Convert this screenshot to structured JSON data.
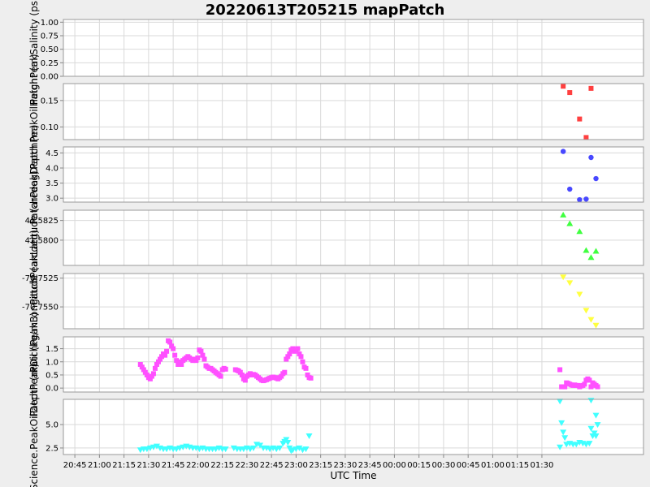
{
  "chart_data": {
    "title": "20220613T205215 mapPatch",
    "type": "scatter",
    "xlabel": "UTC Time",
    "x_ticks": [
      "20:45",
      "21:00",
      "21:15",
      "21:30",
      "21:45",
      "22:00",
      "22:15",
      "22:30",
      "22:45",
      "23:00",
      "23:15",
      "23:30",
      "23:45",
      "00:00",
      "00:15",
      "00:30",
      "00:45",
      "01:00",
      "01:15",
      "01:30"
    ],
    "x_range_minutes": [
      1238,
      1592
    ],
    "grid": true,
    "colors": {
      "background": "#eeeeee",
      "plot_bg": "#ffffff",
      "grid": "#d9d9d9",
      "salinity": "#ff0000",
      "oil_height": "#ff4040",
      "depth": "#4848ff",
      "latitude": "#40ff40",
      "longitude": "#ffff40",
      "peak_oil": "#ff50ff",
      "peak_oil_depth": "#40ffff"
    },
    "panels": [
      {
        "id": "salinity",
        "ylabel": "PatchPeakSalinity (psu)",
        "ylim": [
          0,
          1.05
        ],
        "yticks": [
          0.0,
          0.25,
          0.5,
          0.75,
          1.0
        ],
        "ytick_labels": [
          "0.00",
          "0.25",
          "0.50",
          "0.75",
          "1.00"
        ],
        "marker": "square",
        "points": []
      },
      {
        "id": "oil_height",
        "ylabel": "PatchPeakOilHeight (m)",
        "ylim": [
          0.076,
          0.182
        ],
        "yticks": [
          0.1,
          0.15
        ],
        "ytick_labels": [
          "0.10",
          "0.15"
        ],
        "marker": "square",
        "points": [
          [
            1543,
            0.177
          ],
          [
            1547,
            0.165
          ],
          [
            1553,
            0.115
          ],
          [
            1557,
            0.08
          ],
          [
            1560,
            0.173
          ]
        ]
      },
      {
        "id": "depth",
        "ylabel": "PatchPeakDepth (m)",
        "ylim": [
          2.87,
          4.7
        ],
        "yticks": [
          3.0,
          3.5,
          4.0,
          4.5
        ],
        "ytick_labels": [
          "3.0",
          "3.5",
          "4.0",
          "4.5"
        ],
        "marker": "circle",
        "points": [
          [
            1543,
            4.55
          ],
          [
            1547,
            3.3
          ],
          [
            1553,
            2.95
          ],
          [
            1557,
            2.97
          ],
          [
            1560,
            4.35
          ],
          [
            1563,
            3.65
          ]
        ]
      },
      {
        "id": "latitude",
        "ylabel": "PatchPeakLatitude (arcdeg)",
        "ylim": [
          41.5768,
          41.5838
        ],
        "yticks": [
          41.58,
          41.5825
        ],
        "ytick_labels": [
          "41.5800",
          "41.5825"
        ],
        "marker": "triangle-up",
        "points": [
          [
            1543,
            41.5832
          ],
          [
            1547,
            41.5821
          ],
          [
            1553,
            41.5811
          ],
          [
            1557,
            41.5787
          ],
          [
            1560,
            41.5778
          ],
          [
            1563,
            41.5786
          ]
        ]
      },
      {
        "id": "longitude",
        "ylabel": "PatchPeakLongitude (arcdeg)",
        "ylim": [
          -70.7569,
          -70.7521
        ],
        "yticks": [
          -70.7525,
          -70.755
        ],
        "ytick_labels": [
          "-70.7525",
          "-70.7550"
        ],
        "marker": "triangle-down",
        "points": [
          [
            1543,
            -70.7524
          ],
          [
            1547,
            -70.7529
          ],
          [
            1553,
            -70.7539
          ],
          [
            1557,
            -70.7553
          ],
          [
            1560,
            -70.7561
          ],
          [
            1563,
            -70.7566
          ]
        ]
      },
      {
        "id": "peak_oil",
        "ylabel": "PatchPeakOil (kg/m3)",
        "ylim": [
          -0.15,
          1.95
        ],
        "yticks": [
          0.0,
          0.5,
          1.0,
          1.5
        ],
        "ytick_labels": [
          "0.0",
          "0.5",
          "1.0",
          "1.5"
        ],
        "marker": "square",
        "points": [
          [
            1285,
            0.9
          ],
          [
            1286,
            0.8
          ],
          [
            1287,
            0.7
          ],
          [
            1288,
            0.6
          ],
          [
            1289,
            0.5
          ],
          [
            1290,
            0.4
          ],
          [
            1291,
            0.35
          ],
          [
            1292,
            0.45
          ],
          [
            1293,
            0.55
          ],
          [
            1294,
            0.75
          ],
          [
            1295,
            0.9
          ],
          [
            1296,
            1.0
          ],
          [
            1297,
            1.1
          ],
          [
            1298,
            1.2
          ],
          [
            1299,
            1.3
          ],
          [
            1300,
            1.25
          ],
          [
            1301,
            1.4
          ],
          [
            1302,
            1.8
          ],
          [
            1303,
            1.75
          ],
          [
            1304,
            1.6
          ],
          [
            1305,
            1.5
          ],
          [
            1306,
            1.25
          ],
          [
            1307,
            1.05
          ],
          [
            1308,
            0.9
          ],
          [
            1309,
            1.0
          ],
          [
            1310,
            0.9
          ],
          [
            1311,
            1.05
          ],
          [
            1312,
            1.1
          ],
          [
            1313,
            1.15
          ],
          [
            1314,
            1.2
          ],
          [
            1315,
            1.15
          ],
          [
            1316,
            1.1
          ],
          [
            1317,
            1.05
          ],
          [
            1318,
            1.1
          ],
          [
            1319,
            1.05
          ],
          [
            1320,
            1.15
          ],
          [
            1321,
            1.45
          ],
          [
            1322,
            1.4
          ],
          [
            1323,
            1.25
          ],
          [
            1324,
            1.1
          ],
          [
            1325,
            0.85
          ],
          [
            1326,
            0.8
          ],
          [
            1327,
            0.75
          ],
          [
            1328,
            0.75
          ],
          [
            1329,
            0.7
          ],
          [
            1330,
            0.65
          ],
          [
            1331,
            0.6
          ],
          [
            1332,
            0.55
          ],
          [
            1333,
            0.5
          ],
          [
            1334,
            0.45
          ],
          [
            1335,
            0.7
          ],
          [
            1336,
            0.75
          ],
          [
            1337,
            0.72
          ],
          [
            1343,
            0.7
          ],
          [
            1344,
            0.68
          ],
          [
            1345,
            0.65
          ],
          [
            1346,
            0.6
          ],
          [
            1347,
            0.5
          ],
          [
            1348,
            0.35
          ],
          [
            1349,
            0.3
          ],
          [
            1350,
            0.45
          ],
          [
            1351,
            0.5
          ],
          [
            1352,
            0.55
          ],
          [
            1353,
            0.5
          ],
          [
            1354,
            0.52
          ],
          [
            1355,
            0.5
          ],
          [
            1356,
            0.45
          ],
          [
            1357,
            0.4
          ],
          [
            1358,
            0.35
          ],
          [
            1359,
            0.3
          ],
          [
            1360,
            0.28
          ],
          [
            1361,
            0.3
          ],
          [
            1362,
            0.32
          ],
          [
            1363,
            0.35
          ],
          [
            1364,
            0.38
          ],
          [
            1365,
            0.4
          ],
          [
            1366,
            0.42
          ],
          [
            1367,
            0.4
          ],
          [
            1368,
            0.38
          ],
          [
            1369,
            0.35
          ],
          [
            1370,
            0.4
          ],
          [
            1371,
            0.45
          ],
          [
            1372,
            0.55
          ],
          [
            1373,
            0.6
          ],
          [
            1374,
            1.1
          ],
          [
            1375,
            1.2
          ],
          [
            1376,
            1.3
          ],
          [
            1377,
            1.45
          ],
          [
            1378,
            1.5
          ],
          [
            1379,
            1.4
          ],
          [
            1380,
            1.45
          ],
          [
            1381,
            1.5
          ],
          [
            1382,
            1.3
          ],
          [
            1383,
            1.2
          ],
          [
            1384,
            1.0
          ],
          [
            1385,
            0.8
          ],
          [
            1386,
            0.75
          ],
          [
            1387,
            0.5
          ],
          [
            1388,
            0.4
          ],
          [
            1389,
            0.38
          ],
          [
            1541,
            0.7
          ],
          [
            1542,
            0.05
          ],
          [
            1543,
            0.05
          ],
          [
            1544,
            0.05
          ],
          [
            1545,
            0.2
          ],
          [
            1546,
            0.18
          ],
          [
            1547,
            0.15
          ],
          [
            1548,
            0.12
          ],
          [
            1549,
            0.1
          ],
          [
            1550,
            0.12
          ],
          [
            1551,
            0.1
          ],
          [
            1552,
            0.1
          ],
          [
            1553,
            0.05
          ],
          [
            1554,
            0.08
          ],
          [
            1555,
            0.1
          ],
          [
            1556,
            0.15
          ],
          [
            1557,
            0.3
          ],
          [
            1558,
            0.35
          ],
          [
            1559,
            0.3
          ],
          [
            1560,
            0.05
          ],
          [
            1561,
            0.2
          ],
          [
            1562,
            0.15
          ],
          [
            1563,
            0.1
          ],
          [
            1564,
            0.05
          ]
        ]
      },
      {
        "id": "peak_oil_depth",
        "ylabel": "Science.PeakOilDepth (m)",
        "ylim": [
          1.8,
          7.7
        ],
        "yticks": [
          2.5,
          5.0
        ],
        "ytick_labels": [
          "2.5",
          "5.0"
        ],
        "marker": "triangle-down",
        "points": [
          [
            1285,
            2.3
          ],
          [
            1287,
            2.4
          ],
          [
            1289,
            2.4
          ],
          [
            1291,
            2.5
          ],
          [
            1293,
            2.6
          ],
          [
            1295,
            2.7
          ],
          [
            1297,
            2.5
          ],
          [
            1299,
            2.4
          ],
          [
            1301,
            2.4
          ],
          [
            1303,
            2.5
          ],
          [
            1305,
            2.4
          ],
          [
            1307,
            2.4
          ],
          [
            1309,
            2.5
          ],
          [
            1311,
            2.6
          ],
          [
            1313,
            2.7
          ],
          [
            1315,
            2.6
          ],
          [
            1317,
            2.5
          ],
          [
            1319,
            2.5
          ],
          [
            1321,
            2.4
          ],
          [
            1323,
            2.5
          ],
          [
            1325,
            2.4
          ],
          [
            1327,
            2.4
          ],
          [
            1329,
            2.4
          ],
          [
            1331,
            2.4
          ],
          [
            1333,
            2.5
          ],
          [
            1335,
            2.4
          ],
          [
            1337,
            2.4
          ],
          [
            1342,
            2.5
          ],
          [
            1344,
            2.4
          ],
          [
            1346,
            2.4
          ],
          [
            1348,
            2.4
          ],
          [
            1350,
            2.5
          ],
          [
            1352,
            2.4
          ],
          [
            1354,
            2.5
          ],
          [
            1356,
            2.9
          ],
          [
            1358,
            2.8
          ],
          [
            1360,
            2.5
          ],
          [
            1362,
            2.5
          ],
          [
            1364,
            2.4
          ],
          [
            1366,
            2.5
          ],
          [
            1368,
            2.4
          ],
          [
            1370,
            2.5
          ],
          [
            1372,
            3.0
          ],
          [
            1373,
            3.2
          ],
          [
            1374,
            3.4
          ],
          [
            1375,
            3.1
          ],
          [
            1376,
            2.5
          ],
          [
            1377,
            2.2
          ],
          [
            1378,
            2.3
          ],
          [
            1380,
            2.4
          ],
          [
            1382,
            2.5
          ],
          [
            1384,
            2.3
          ],
          [
            1386,
            2.4
          ],
          [
            1388,
            3.8
          ],
          [
            1541,
            2.6
          ],
          [
            1541,
            7.5
          ],
          [
            1542,
            5.2
          ],
          [
            1543,
            4.2
          ],
          [
            1544,
            3.6
          ],
          [
            1545,
            2.9
          ],
          [
            1547,
            3.0
          ],
          [
            1549,
            2.9
          ],
          [
            1551,
            2.9
          ],
          [
            1553,
            3.1
          ],
          [
            1555,
            3.0
          ],
          [
            1557,
            2.9
          ],
          [
            1559,
            3.0
          ],
          [
            1560,
            7.6
          ],
          [
            1560,
            4.6
          ],
          [
            1561,
            3.8
          ],
          [
            1562,
            4.1
          ],
          [
            1563,
            6.0
          ],
          [
            1563,
            3.8
          ],
          [
            1564,
            5.0
          ]
        ]
      }
    ]
  }
}
